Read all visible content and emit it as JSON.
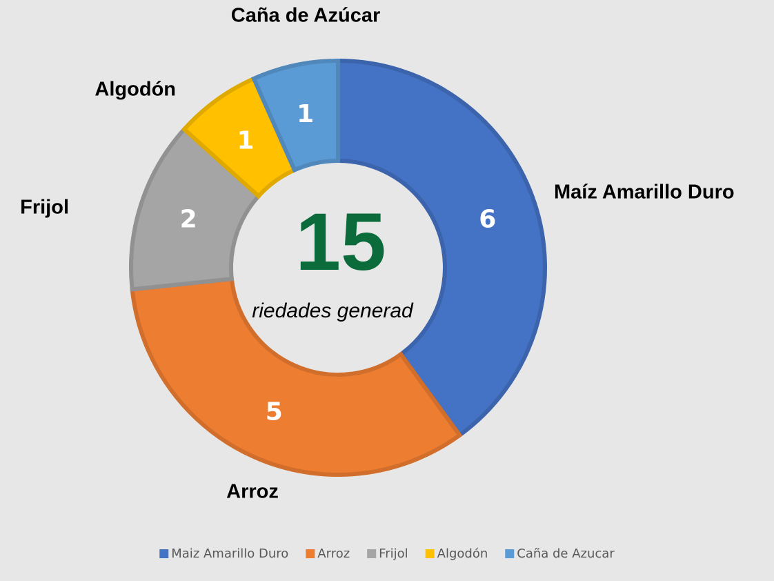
{
  "chart_data": {
    "type": "donut",
    "categories": [
      "Maíz Amarillo Duro",
      "Arroz",
      "Frijol",
      "Algodón",
      "Caña de Azúcar"
    ],
    "values": [
      6,
      5,
      2,
      1,
      1
    ],
    "legend": [
      "Maiz Amarillo Duro",
      "Arroz",
      "Frijol",
      "Algodón",
      "Caña de Azucar"
    ],
    "colors": [
      "#4472c4",
      "#ed7d31",
      "#a5a5a5",
      "#ffc000",
      "#5b9bd5"
    ],
    "center_value": 15,
    "center_text": "riedades generad",
    "legend_position": "bottom"
  }
}
